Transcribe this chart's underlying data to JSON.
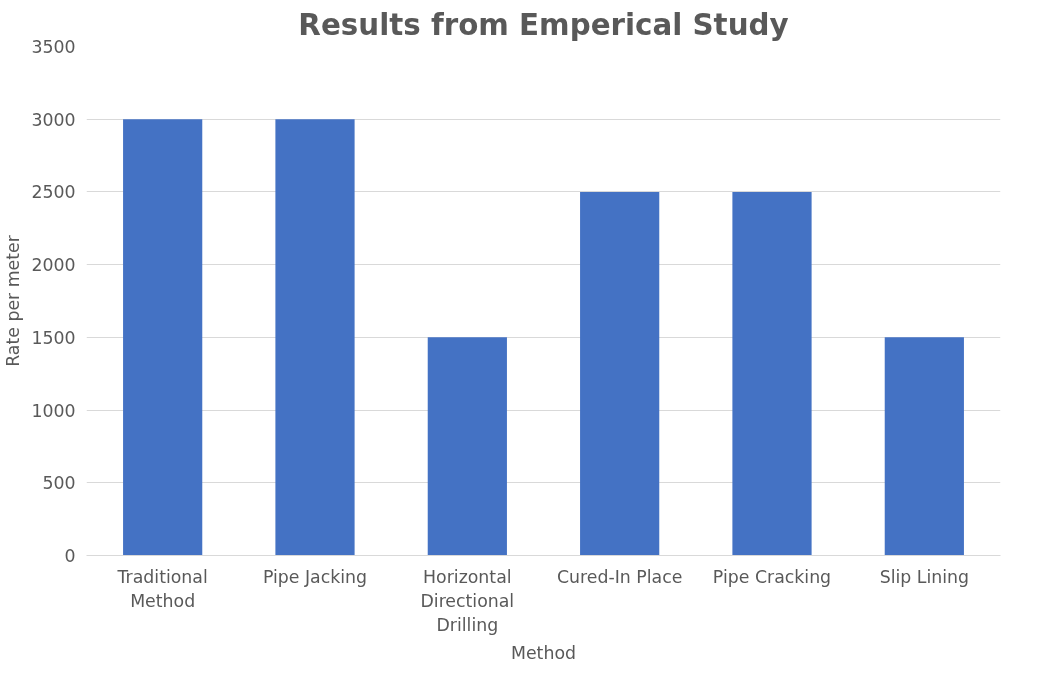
{
  "chart_data": {
    "type": "bar",
    "title": "Results from Emperical Study",
    "xlabel": "Method",
    "ylabel": "Rate per meter",
    "categories": [
      "Traditional Method",
      "Pipe Jacking",
      "Horizontal Directional Drilling",
      "Cured-In Place",
      "Pipe Cracking",
      "Slip Lining"
    ],
    "values": [
      3000,
      3000,
      1500,
      2500,
      2500,
      1500
    ],
    "color": "#4472c4",
    "ylim": [
      0,
      3500
    ],
    "yticks": [
      0,
      500,
      1000,
      1500,
      2000,
      2500,
      3000,
      3500
    ],
    "grid": "y"
  }
}
